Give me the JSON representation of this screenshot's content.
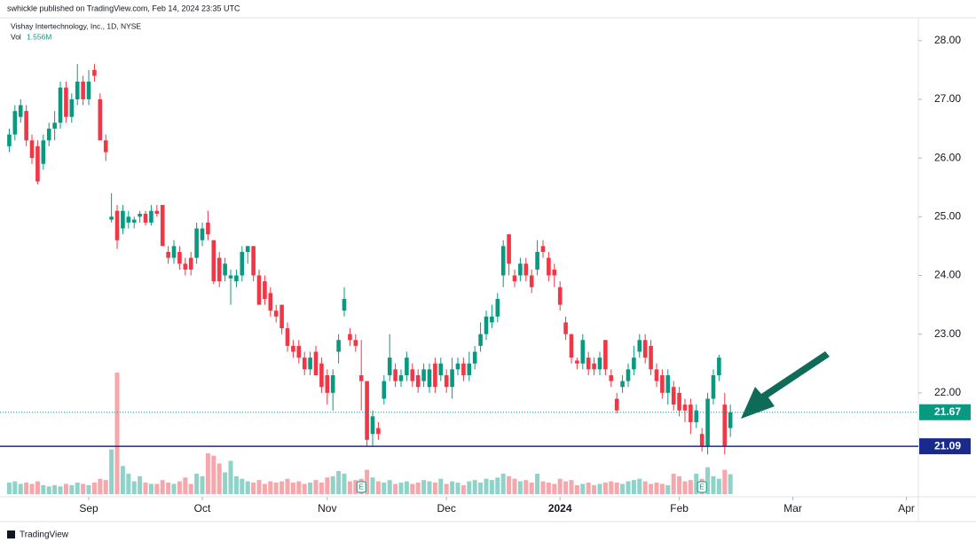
{
  "chart_data": {
    "type": "candlestick",
    "publisher": "swhickle published on TradingView.com, Feb 14, 2024 23:35 UTC",
    "title": "Vishay Intertechnology, Inc., 1D, NYSE",
    "volume_title": "Vol",
    "last_volume_label": "1.556M",
    "brand": "TradingView",
    "up_color": "#089981",
    "down_color": "#f23645",
    "volume_up_color": "#8fd3c8",
    "volume_down_color": "#f7a7ab",
    "xlim": [
      -1.63,
      160.1
    ],
    "xticks": [
      {
        "value": 14,
        "label": "Sep"
      },
      {
        "value": 34,
        "label": "Oct"
      },
      {
        "value": 56,
        "label": "Nov"
      },
      {
        "value": 77,
        "label": "Dec"
      },
      {
        "value": 97,
        "label": "2024"
      },
      {
        "value": 118,
        "label": "Feb"
      },
      {
        "value": 138,
        "label": "Mar"
      },
      {
        "value": 158,
        "label": "Apr"
      }
    ],
    "ylim": [
      20.23,
      28.57
    ],
    "yticks": [
      {
        "value": 22,
        "label": "22.00"
      },
      {
        "value": 23,
        "label": "23.00"
      },
      {
        "value": 24,
        "label": "24.00"
      },
      {
        "value": 25,
        "label": "25.00"
      },
      {
        "value": 26,
        "label": "26.00"
      },
      {
        "value": 27,
        "label": "27.00"
      },
      {
        "value": 28,
        "label": "28.00"
      }
    ],
    "open": [
      26.2,
      26.4,
      26.7,
      26.8,
      26.3,
      26.2,
      25.9,
      26.3,
      26.5,
      26.6,
      27.2,
      26.7,
      27.0,
      27.3,
      27.0,
      27.5,
      27.0,
      26.3,
      24.95,
      25.1,
      24.8,
      24.9,
      24.9,
      25.0,
      25.05,
      24.9,
      25.1,
      25.2,
      24.4,
      24.3,
      24.4,
      24.2,
      24.3,
      24.3,
      24.6,
      24.9,
      24.6,
      24.3,
      24.0,
      23.95,
      23.9,
      24.0,
      24.4,
      24.5,
      24.0,
      23.9,
      23.7,
      23.4,
      23.5,
      23.1,
      22.8,
      22.8,
      22.6,
      22.4,
      22.7,
      22.5,
      22.3,
      22.0,
      22.7,
      23.4,
      23.0,
      22.9,
      22.3,
      22.2,
      21.3,
      21.4,
      21.9,
      22.3,
      22.4,
      22.2,
      22.3,
      22.4,
      22.3,
      22.2,
      22.1,
      22.5,
      22.3,
      22.3,
      22.1,
      22.4,
      22.5,
      22.3,
      22.5,
      22.8,
      23.0,
      23.2,
      23.3,
      24.0,
      24.7,
      24.0,
      24.0,
      24.2,
      24.0,
      24.1,
      24.5,
      24.3,
      24.1,
      23.8,
      23.2,
      23.0,
      22.55,
      22.5,
      22.6,
      22.5,
      22.4,
      22.9,
      22.3,
      21.9,
      22.1,
      22.2,
      22.4,
      22.7,
      22.9,
      22.8,
      22.4,
      22.3,
      22.0,
      22.1,
      22.0,
      21.8,
      21.8,
      21.5,
      21.3,
      21.1,
      21.9,
      22.3,
      21.8,
      21.4
    ],
    "high": [
      26.5,
      26.9,
      27.0,
      26.9,
      26.4,
      26.3,
      26.4,
      26.6,
      26.8,
      27.3,
      27.3,
      27.1,
      27.6,
      27.4,
      27.5,
      27.6,
      27.1,
      26.4,
      25.4,
      25.2,
      25.2,
      25.1,
      25.0,
      25.1,
      25.1,
      25.2,
      25.2,
      25.2,
      24.5,
      24.6,
      24.5,
      24.3,
      24.4,
      24.9,
      24.9,
      25.1,
      24.6,
      24.4,
      24.3,
      24.1,
      24.1,
      24.5,
      24.5,
      24.5,
      24.1,
      24.0,
      23.8,
      23.5,
      23.5,
      23.2,
      22.9,
      22.9,
      22.7,
      22.7,
      22.8,
      22.6,
      22.4,
      22.4,
      23.0,
      23.8,
      23.1,
      23.0,
      22.9,
      22.2,
      21.7,
      21.5,
      22.3,
      23.0,
      22.5,
      22.4,
      22.7,
      22.5,
      22.4,
      22.5,
      22.5,
      22.6,
      22.6,
      22.4,
      22.6,
      22.6,
      22.6,
      22.7,
      22.8,
      23.2,
      23.4,
      23.5,
      23.7,
      24.6,
      24.7,
      24.1,
      24.3,
      24.3,
      24.1,
      24.6,
      24.6,
      24.4,
      24.2,
      23.9,
      23.3,
      23.0,
      22.6,
      23.0,
      22.7,
      22.6,
      22.7,
      22.9,
      22.4,
      22.0,
      22.3,
      22.5,
      22.8,
      23.0,
      23.0,
      22.9,
      22.5,
      22.4,
      22.4,
      22.2,
      22.1,
      21.9,
      21.9,
      21.8,
      21.4,
      22.0,
      22.4,
      22.65,
      22.0,
      21.8
    ],
    "low": [
      26.1,
      26.3,
      26.6,
      26.2,
      25.9,
      25.55,
      25.8,
      26.2,
      26.3,
      26.5,
      26.6,
      26.6,
      26.9,
      26.9,
      26.9,
      27.3,
      26.3,
      25.95,
      24.9,
      24.45,
      24.7,
      24.8,
      24.8,
      24.9,
      24.85,
      24.85,
      25.0,
      24.5,
      24.2,
      24.2,
      24.1,
      24.0,
      24.0,
      24.2,
      24.5,
      24.6,
      23.85,
      23.8,
      23.9,
      23.5,
      23.8,
      23.9,
      24.2,
      23.9,
      23.5,
      23.5,
      23.3,
      23.2,
      23.0,
      22.7,
      22.6,
      22.5,
      22.3,
      22.3,
      22.3,
      22.0,
      21.8,
      21.7,
      22.5,
      23.3,
      22.8,
      22.7,
      21.7,
      21.1,
      21.1,
      21.2,
      21.8,
      22.2,
      22.1,
      22.1,
      22.2,
      22.1,
      22.0,
      22.1,
      22.0,
      22.0,
      22.2,
      22.0,
      21.9,
      22.3,
      22.2,
      22.2,
      22.4,
      22.7,
      22.9,
      23.1,
      23.2,
      23.8,
      24.0,
      23.8,
      23.9,
      23.9,
      23.7,
      24.0,
      24.3,
      23.9,
      23.8,
      23.4,
      22.9,
      22.5,
      22.4,
      22.4,
      22.3,
      22.3,
      22.3,
      22.3,
      22.1,
      21.65,
      22.0,
      22.1,
      22.3,
      22.6,
      22.5,
      22.3,
      22.1,
      21.9,
      21.8,
      21.7,
      21.6,
      21.5,
      21.3,
      21.4,
      21.0,
      20.95,
      21.8,
      22.2,
      20.95,
      21.25
    ],
    "close": [
      26.4,
      26.8,
      26.9,
      26.3,
      26.0,
      25.6,
      26.3,
      26.5,
      26.6,
      27.2,
      26.7,
      27.0,
      27.3,
      27.0,
      27.3,
      27.4,
      26.3,
      26.1,
      25.0,
      24.6,
      25.1,
      25.0,
      24.95,
      25.05,
      24.9,
      25.1,
      25.05,
      24.5,
      24.3,
      24.5,
      24.2,
      24.1,
      24.1,
      24.8,
      24.8,
      24.7,
      23.9,
      23.9,
      24.2,
      24.0,
      24.0,
      24.4,
      24.5,
      24.0,
      23.5,
      23.6,
      23.4,
      23.3,
      23.1,
      22.8,
      22.7,
      22.6,
      22.4,
      22.6,
      22.3,
      22.1,
      22.0,
      22.3,
      22.9,
      23.6,
      22.9,
      22.8,
      22.2,
      21.2,
      21.6,
      21.3,
      22.2,
      22.6,
      22.2,
      22.3,
      22.6,
      22.2,
      22.1,
      22.4,
      22.4,
      22.1,
      22.5,
      22.1,
      22.4,
      22.5,
      22.3,
      22.5,
      22.7,
      23.0,
      23.3,
      23.3,
      23.6,
      24.5,
      24.2,
      23.9,
      24.2,
      24.0,
      23.8,
      24.4,
      24.4,
      24.0,
      24.0,
      23.5,
      23.0,
      22.6,
      22.5,
      22.9,
      22.4,
      22.4,
      22.6,
      22.4,
      22.2,
      21.7,
      22.2,
      22.4,
      22.6,
      22.9,
      22.6,
      22.4,
      22.2,
      22.0,
      22.3,
      21.8,
      21.7,
      21.7,
      21.5,
      21.7,
      21.1,
      21.9,
      22.3,
      22.6,
      21.1,
      21.67
    ],
    "volume": [
      0.9,
      1.0,
      0.8,
      0.9,
      0.8,
      1.0,
      0.7,
      0.6,
      0.7,
      0.6,
      0.8,
      0.7,
      0.9,
      0.8,
      0.7,
      0.9,
      1.2,
      1.1,
      3.5,
      9.5,
      2.2,
      1.6,
      1.0,
      1.4,
      0.9,
      0.8,
      0.8,
      1.1,
      0.9,
      0.8,
      1.0,
      1.3,
      0.8,
      1.6,
      1.4,
      3.2,
      3.0,
      2.4,
      1.7,
      2.6,
      1.4,
      1.2,
      1.0,
      0.9,
      1.1,
      0.8,
      1.0,
      0.9,
      1.0,
      1.2,
      0.9,
      1.0,
      0.8,
      0.9,
      1.1,
      0.9,
      1.3,
      1.4,
      1.8,
      1.6,
      1.0,
      1.1,
      1.2,
      1.9,
      1.3,
      1.0,
      0.9,
      1.1,
      0.8,
      0.9,
      1.0,
      0.8,
      0.9,
      1.1,
      1.0,
      0.9,
      1.2,
      0.8,
      1.0,
      0.9,
      0.7,
      1.0,
      1.1,
      0.9,
      1.2,
      1.1,
      1.3,
      1.6,
      1.4,
      1.2,
      1.0,
      1.1,
      0.9,
      1.6,
      1.0,
      0.9,
      0.8,
      1.2,
      1.0,
      1.1,
      0.7,
      0.8,
      0.9,
      0.7,
      0.8,
      0.9,
      1.0,
      0.9,
      0.8,
      1.0,
      1.1,
      1.2,
      1.0,
      0.8,
      0.9,
      0.8,
      0.7,
      1.6,
      1.4,
      1.0,
      1.1,
      1.6,
      1.2,
      2.1,
      1.4,
      1.2,
      1.9,
      1.556
    ],
    "earnings": [
      {
        "x": 62,
        "label": "E"
      },
      {
        "x": 122,
        "label": "E"
      }
    ],
    "last_price": {
      "value": 21.67,
      "label": "21.67",
      "color": "#089981"
    },
    "hline": {
      "value": 21.09,
      "label": "21.09",
      "color": "#1a2a8c"
    }
  }
}
